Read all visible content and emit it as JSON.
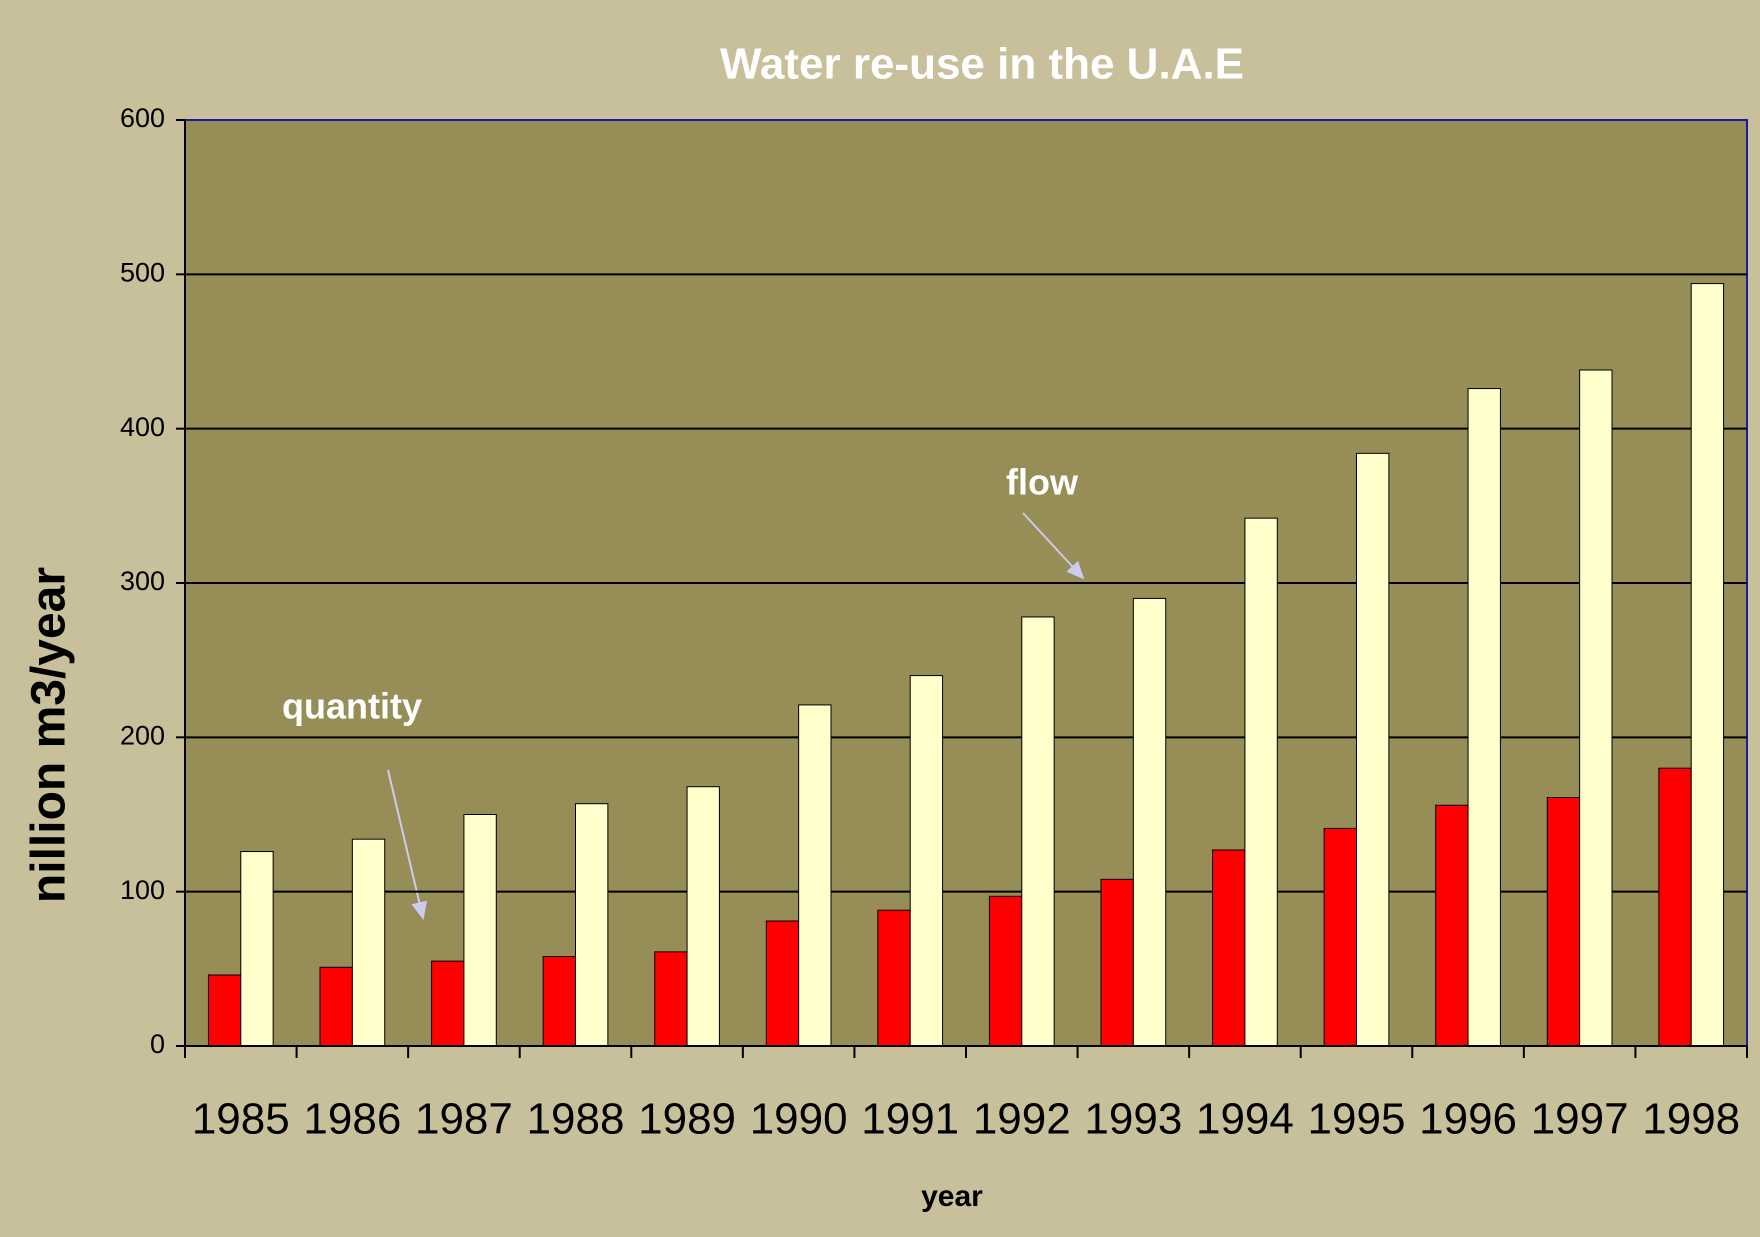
{
  "chart_data": {
    "type": "bar",
    "title": "Water re-use in the U.A.E",
    "x_label": "year",
    "y_label": "nillion m3/year",
    "categories": [
      "1985",
      "1986",
      "1987",
      "1988",
      "1989",
      "1990",
      "1991",
      "1992",
      "1993",
      "1994",
      "1995",
      "1996",
      "1997",
      "1998"
    ],
    "series": [
      {
        "name": "quantity",
        "color": "#ff0000",
        "values": [
          46,
          51,
          55,
          58,
          61,
          81,
          88,
          97,
          108,
          127,
          141,
          156,
          161,
          180
        ]
      },
      {
        "name": "flow",
        "color": "#ffffcc",
        "values": [
          126,
          134,
          150,
          157,
          168,
          221,
          240,
          278,
          290,
          342,
          384,
          426,
          438,
          494
        ]
      }
    ],
    "ylim": [
      0,
      600
    ],
    "yticks": [
      0,
      100,
      200,
      300,
      400,
      500,
      600
    ],
    "grid": true
  }
}
